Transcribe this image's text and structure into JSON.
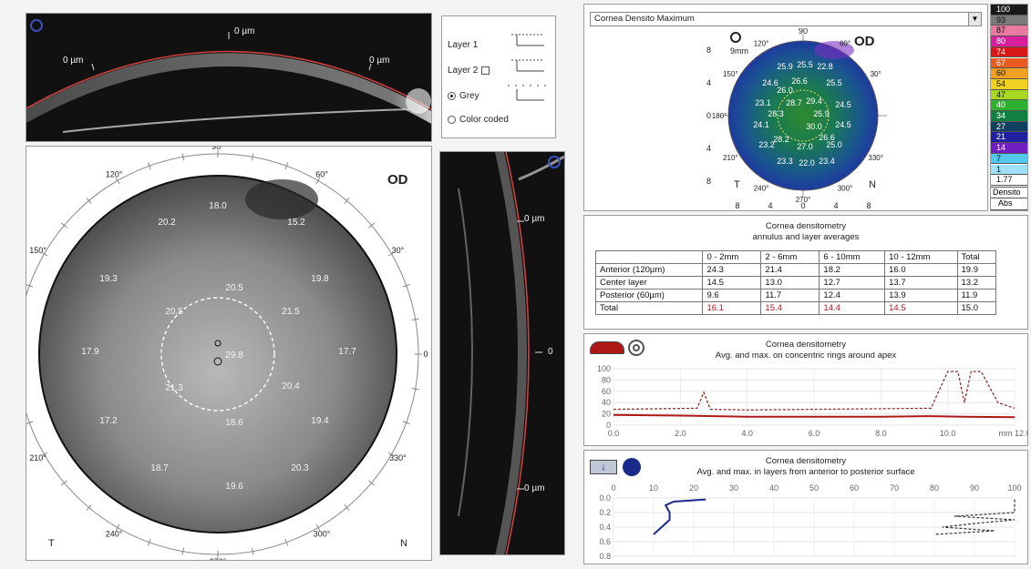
{
  "top_scan": {
    "labels": [
      "0 µm",
      "0 µm",
      "0 µm"
    ]
  },
  "layers": {
    "options": [
      {
        "label": "Layer 1",
        "type": "none"
      },
      {
        "label": "Layer 2",
        "type": "checkbox"
      },
      {
        "label": "Grey",
        "type": "radio",
        "checked": true
      },
      {
        "label": "Color coded",
        "type": "radio",
        "checked": false
      }
    ]
  },
  "grey_map": {
    "eye": "OD",
    "angle_labels": [
      "90°",
      "60°",
      "30°",
      "0",
      "330°",
      "300°",
      "270°",
      "240°",
      "210°",
      "180°",
      "150°",
      "120°"
    ],
    "left": "T",
    "right": "N",
    "values": [
      "18.0",
      "20.2",
      "15.2",
      "19.3",
      "20.5",
      "19.8",
      "20.5",
      "21.5",
      "17.9",
      "29.8",
      "17.7",
      "21.3",
      "20.4",
      "17.2",
      "18.6",
      "19.4",
      "18.7",
      "20.3",
      "19.6"
    ]
  },
  "side_scan": {
    "labels": [
      "0 µm",
      "0",
      "0 µm"
    ]
  },
  "color_map": {
    "dropdown_value": "Cornea Densito Maximum",
    "eye": "OD",
    "zoom_label": "9mm",
    "y_ticks": [
      "8",
      "4",
      "0",
      "4",
      "8"
    ],
    "x_ticks": [
      "8",
      "4",
      "0",
      "4",
      "8"
    ],
    "top_angle": "90",
    "angle_labels": [
      "120°",
      "60°",
      "150°",
      "30°",
      "180°",
      "330°",
      "210°",
      "240°",
      "270°",
      "300°"
    ],
    "left": "T",
    "right": "N",
    "values": [
      "25.9",
      "25.5",
      "22.8",
      "24.6",
      "26.6",
      "25.5",
      "26.0",
      "23.1",
      "28.7",
      "29.4",
      "24.5",
      "28.3",
      "25.9",
      "24.1",
      "30.0",
      "24.5",
      "28.2",
      "26.6",
      "23.2",
      "27.0",
      "25.0",
      "23.3",
      "22.0",
      "23.4"
    ]
  },
  "legend": {
    "values": [
      "100",
      "93",
      "87",
      "80",
      "74",
      "67",
      "60",
      "54",
      "47",
      "40",
      "34",
      "27",
      "21",
      "14",
      "7",
      "1",
      "1.77"
    ],
    "colors": [
      "#1a1a1a",
      "#7a7a7a",
      "#e87aa0",
      "#d81e9a",
      "#d81818",
      "#e85a20",
      "#f0a020",
      "#f0d020",
      "#a8d820",
      "#30b030",
      "#108040",
      "#104060",
      "#2020a0",
      "#7020c0",
      "#50c8f0",
      "#a0e0f8",
      "#ffffff"
    ],
    "footer": [
      "Densito",
      "Abs"
    ]
  },
  "table": {
    "title": "Cornea densitometry",
    "subtitle": "annulus and layer averages",
    "headers": [
      "",
      "0 - 2mm",
      "2 - 6mm",
      "6 - 10mm",
      "10 - 12mm",
      "Total"
    ],
    "rows": [
      [
        "Anterior (120µm)",
        "24.3",
        "21.4",
        "18.2",
        "16.0",
        "19.9"
      ],
      [
        "Center layer",
        "14.5",
        "13.0",
        "12.7",
        "13.7",
        "13.2"
      ],
      [
        "Posterior (60µm)",
        "9.6",
        "11.7",
        "12.4",
        "13.9",
        "11.9"
      ],
      [
        "Total",
        "16.1",
        "15.4",
        "14.4",
        "14.5",
        "15.0"
      ]
    ]
  },
  "rings_chart": {
    "title": "Cornea densitometry",
    "subtitle": "Avg. and max. on concentric rings around apex",
    "chart_data": {
      "type": "line",
      "x_ticks": [
        "0.0",
        "2.0",
        "4.0",
        "6.0",
        "8.0",
        "10.0",
        "mm 12.0"
      ],
      "y_ticks": [
        "100",
        "80",
        "60",
        "40",
        "20",
        "0"
      ],
      "ylim": [
        0,
        100
      ],
      "xlim": [
        0,
        12
      ],
      "series": [
        {
          "kind": "max",
          "color": "#8a2020",
          "points": [
            [
              0,
              28
            ],
            [
              2.5,
              30
            ],
            [
              2.7,
              58
            ],
            [
              2.9,
              28
            ],
            [
              4,
              27
            ],
            [
              9.5,
              30
            ],
            [
              10,
              95
            ],
            [
              10.3,
              95
            ],
            [
              10.5,
              40
            ],
            [
              10.7,
              95
            ],
            [
              11,
              95
            ],
            [
              11.5,
              40
            ],
            [
              12,
              30
            ]
          ]
        },
        {
          "kind": "avg",
          "color": "#b01818",
          "points": [
            [
              0,
              18
            ],
            [
              2,
              17
            ],
            [
              4,
              15
            ],
            [
              6,
              15
            ],
            [
              8,
              15
            ],
            [
              9.5,
              16
            ],
            [
              10.5,
              15
            ],
            [
              12,
              14
            ]
          ]
        }
      ]
    }
  },
  "layers_chart": {
    "title": "Cornea densitometry",
    "subtitle": "Avg. and max. in layers from anterior to posterior surface",
    "chart_data": {
      "type": "line",
      "x_ticks": [
        "0",
        "10",
        "20",
        "30",
        "40",
        "50",
        "60",
        "70",
        "80",
        "90",
        "100"
      ],
      "y_ticks": [
        "0.0",
        "0.2",
        "0.4",
        "0.6",
        "0.8"
      ],
      "xlim": [
        0,
        100
      ],
      "ylim": [
        0,
        0.8
      ],
      "series": [
        {
          "kind": "avg",
          "color": "#1a2a8a",
          "points": [
            [
              23,
              0.02
            ],
            [
              15,
              0.05
            ],
            [
              13,
              0.1
            ],
            [
              14,
              0.2
            ],
            [
              14,
              0.3
            ],
            [
              12,
              0.4
            ],
            [
              10,
              0.5
            ]
          ]
        },
        {
          "kind": "max",
          "color": "#333333",
          "points": [
            [
              100,
              0.02
            ],
            [
              100,
              0.2
            ],
            [
              85,
              0.25
            ],
            [
              100,
              0.3
            ],
            [
              90,
              0.35
            ],
            [
              82,
              0.4
            ],
            [
              95,
              0.45
            ],
            [
              80,
              0.5
            ]
          ]
        }
      ]
    }
  }
}
